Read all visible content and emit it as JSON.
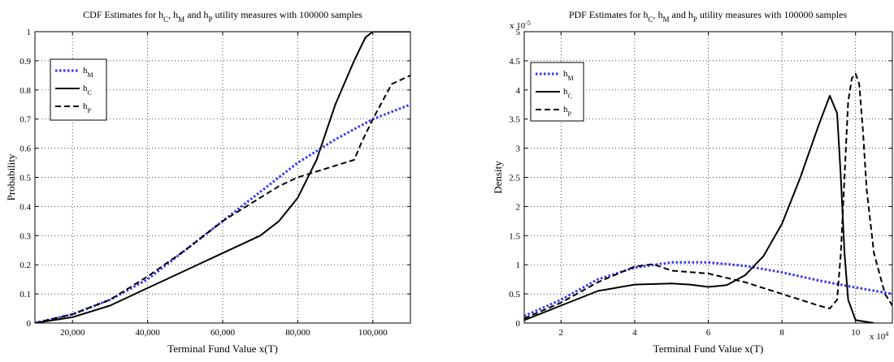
{
  "chart_data": [
    {
      "id": "cdf",
      "type": "line",
      "title": {
        "parts": [
          {
            "t": "CDF Estimates for h"
          },
          {
            "t": "C",
            "sub": true
          },
          {
            "t": ", h"
          },
          {
            "t": "M",
            "sub": true
          },
          {
            "t": " and h"
          },
          {
            "t": "P",
            "sub": true
          },
          {
            "t": " utility measures with 100000 samples"
          }
        ]
      },
      "xlabel": "Terminal Fund Value x(T)",
      "ylabel": "Probability",
      "xlim": [
        10000,
        110000
      ],
      "ylim": [
        0,
        1
      ],
      "xticks": [
        20000,
        40000,
        60000,
        80000,
        100000
      ],
      "xtick_labels": [
        "20,000",
        "40,000",
        "60,000",
        "80,000",
        "100,000"
      ],
      "yticks": [
        0,
        0.1,
        0.2,
        0.3,
        0.4,
        0.5,
        0.6,
        0.7,
        0.8,
        0.9,
        1
      ],
      "ytick_labels": [
        "0",
        "0.1",
        "0.2",
        "0.3",
        "0.4",
        "0.5",
        "0.6",
        "0.7",
        "0.8",
        "0.9",
        "1"
      ],
      "x_exponent_label": "",
      "y_exponent_label": "",
      "grid": true,
      "legend_position": "upper-left",
      "series": [
        {
          "name": "h",
          "sub": "M",
          "color": "#3333ff",
          "style": "dotted",
          "x": [
            10000,
            20000,
            30000,
            40000,
            50000,
            60000,
            70000,
            80000,
            90000,
            100000,
            110000
          ],
          "y": [
            0.0,
            0.03,
            0.08,
            0.15,
            0.25,
            0.35,
            0.45,
            0.55,
            0.63,
            0.7,
            0.75
          ]
        },
        {
          "name": "h",
          "sub": "C",
          "color": "#000000",
          "style": "solid",
          "x": [
            10000,
            20000,
            30000,
            40000,
            50000,
            60000,
            70000,
            75000,
            80000,
            85000,
            90000,
            95000,
            98000,
            100000,
            110000
          ],
          "y": [
            0.0,
            0.02,
            0.06,
            0.12,
            0.18,
            0.24,
            0.3,
            0.35,
            0.43,
            0.56,
            0.75,
            0.9,
            0.98,
            1.0,
            1.0
          ]
        },
        {
          "name": "h",
          "sub": "P",
          "color": "#000000",
          "style": "dashed",
          "x": [
            10000,
            20000,
            30000,
            40000,
            50000,
            60000,
            70000,
            75000,
            80000,
            85000,
            90000,
            95000,
            97000,
            100000,
            105000,
            110000
          ],
          "y": [
            0.0,
            0.03,
            0.08,
            0.16,
            0.25,
            0.35,
            0.43,
            0.47,
            0.5,
            0.52,
            0.54,
            0.56,
            0.62,
            0.7,
            0.82,
            0.85
          ]
        }
      ]
    },
    {
      "id": "pdf",
      "type": "line",
      "title": {
        "parts": [
          {
            "t": "PDF Estimates for h"
          },
          {
            "t": "C",
            "sub": true
          },
          {
            "t": ", h"
          },
          {
            "t": "M",
            "sub": true
          },
          {
            "t": " and h"
          },
          {
            "t": "P",
            "sub": true
          },
          {
            "t": " utility measures with 100000 samples"
          }
        ]
      },
      "xlabel": "Terminal Fund Value x(T)",
      "ylabel": "Density",
      "xlim": [
        10000,
        110000
      ],
      "ylim": [
        0,
        5e-05
      ],
      "xticks": [
        20000,
        40000,
        60000,
        80000,
        100000
      ],
      "xtick_labels": [
        "2",
        "4",
        "6",
        "8",
        "10"
      ],
      "yticks": [
        0,
        5e-06,
        1e-05,
        1.5e-05,
        2e-05,
        2.5e-05,
        3e-05,
        3.5e-05,
        4e-05,
        4.5e-05,
        5e-05
      ],
      "ytick_labels": [
        "0",
        "0.5",
        "1",
        "1.5",
        "2",
        "2.5",
        "3",
        "3.5",
        "4",
        "4.5",
        "5"
      ],
      "x_exponent_label": "x 10",
      "x_exponent_power": "4",
      "y_exponent_label": "x 10",
      "y_exponent_power": "-5",
      "grid": true,
      "legend_position": "upper-left",
      "series": [
        {
          "name": "h",
          "sub": "M",
          "color": "#3333ff",
          "style": "dotted",
          "x": [
            10000,
            20000,
            30000,
            40000,
            50000,
            60000,
            70000,
            80000,
            90000,
            100000,
            110000
          ],
          "y": [
            1.2e-06,
            4e-06,
            7.5e-06,
            9.5e-06,
            1.04e-05,
            1.04e-05,
            9.8e-06,
            8.7e-06,
            7.3e-06,
            6.1e-06,
            5e-06
          ]
        },
        {
          "name": "h",
          "sub": "C",
          "color": "#000000",
          "style": "solid",
          "x": [
            10000,
            20000,
            30000,
            40000,
            50000,
            55000,
            60000,
            65000,
            70000,
            75000,
            80000,
            85000,
            90000,
            93000,
            95000,
            96000,
            97000,
            98000,
            100000,
            105000
          ],
          "y": [
            5e-07,
            3e-06,
            5.5e-06,
            6.6e-06,
            6.8e-06,
            6.6e-06,
            6.2e-06,
            6.5e-06,
            8.2e-06,
            1.15e-05,
            1.7e-05,
            2.5e-05,
            3.4e-05,
            3.9e-05,
            3.6e-05,
            2.5e-05,
            1.2e-05,
            4e-06,
            5e-07,
            0.0
          ]
        },
        {
          "name": "h",
          "sub": "P",
          "color": "#000000",
          "style": "dashed",
          "x": [
            10000,
            20000,
            30000,
            40000,
            45000,
            50000,
            60000,
            70000,
            80000,
            90000,
            93000,
            95000,
            96000,
            97000,
            98000,
            99000,
            100000,
            101000,
            102000,
            103000,
            105000,
            108000,
            110000
          ],
          "y": [
            8e-07,
            3.5e-06,
            7e-06,
            9.7e-06,
            1.01e-05,
            9e-06,
            8.5e-06,
            7e-06,
            5e-06,
            3e-06,
            2.5e-06,
            4e-06,
            1.2e-05,
            2.5e-05,
            3.8e-05,
            4.2e-05,
            4.28e-05,
            4.1e-05,
            3.3e-05,
            2.3e-05,
            1.2e-05,
            5e-06,
            3e-06
          ]
        }
      ]
    }
  ]
}
